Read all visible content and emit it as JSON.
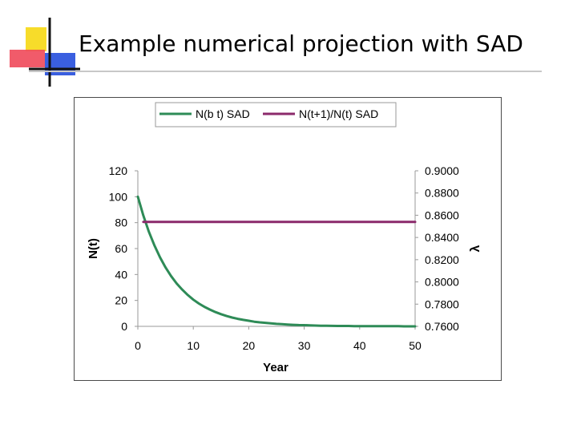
{
  "slide": {
    "title": "Example numerical projection with SAD"
  },
  "colors": {
    "series_green": "#2e8b57",
    "series_purple": "#8b2a6b",
    "axis": "#9a9a9a",
    "logo_yellow": "#f7dc2a",
    "logo_red": "#f0495a",
    "logo_blue": "#3a5fe0"
  },
  "chart_data": {
    "type": "line",
    "xlabel": "Year",
    "ylabel": "N(t)",
    "y2label": "λ",
    "xlim": [
      0,
      50
    ],
    "ylim": [
      0,
      120
    ],
    "y2lim": [
      0.76,
      0.9
    ],
    "x_ticks": [
      "0",
      "10",
      "20",
      "30",
      "40",
      "50"
    ],
    "y_ticks": [
      "0",
      "20",
      "40",
      "60",
      "80",
      "100",
      "120"
    ],
    "y2_ticks": [
      "0.7600",
      "0.7800",
      "0.8000",
      "0.8200",
      "0.8400",
      "0.8600",
      "0.8800",
      "0.9000"
    ],
    "grid": false,
    "legend_position": "top",
    "series": [
      {
        "name": "N(b t) SAD",
        "axis": "left",
        "x": [
          0,
          1,
          2,
          3,
          4,
          5,
          6,
          7,
          8,
          9,
          10,
          11,
          12,
          13,
          14,
          15,
          16,
          17,
          18,
          19,
          20,
          21,
          22,
          23,
          24,
          25,
          26,
          27,
          28,
          29,
          30,
          31,
          32,
          33,
          34,
          35,
          36,
          37,
          38,
          39,
          40,
          41,
          42,
          43,
          44,
          45,
          46,
          47,
          48,
          49,
          50
        ],
        "values": [
          100,
          85.4,
          72.9,
          62.3,
          53.2,
          45.4,
          38.8,
          33.1,
          28.3,
          24.2,
          20.6,
          17.6,
          15.1,
          12.9,
          11,
          9.4,
          8,
          6.8,
          5.8,
          5,
          4.3,
          3.6,
          3.1,
          2.7,
          2.3,
          1.9,
          1.7,
          1.4,
          1.2,
          1,
          0.9,
          0.8,
          0.6,
          0.5,
          0.5,
          0.4,
          0.3,
          0.3,
          0.3,
          0.2,
          0.2,
          0.2,
          0.1,
          0.1,
          0.1,
          0.1,
          0.1,
          0.1,
          0,
          0,
          0
        ]
      },
      {
        "name": "N(t+1)/N(t) SAD",
        "axis": "right",
        "x": [
          1,
          50
        ],
        "values": [
          0.854,
          0.854
        ]
      }
    ]
  }
}
